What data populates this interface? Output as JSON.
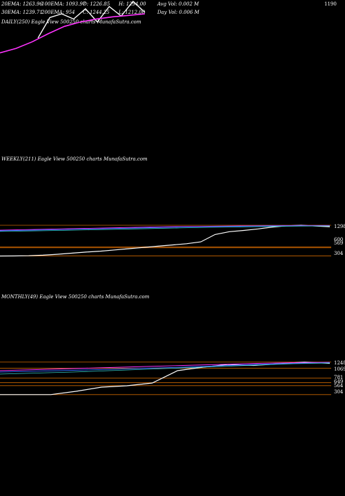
{
  "header": {
    "row1": [
      "20EMA: 1263.96",
      "100EMA: 1093.97",
      "O: 1226.85",
      "H: 1294.00",
      "Avg Vol: 0.002  M"
    ],
    "row2": [
      "30EMA: 1239.71",
      "200EMA: 954",
      "C: 1244.25",
      "L: 1212.00",
      "Day Vol: 0.006  M"
    ]
  },
  "colors": {
    "background": "#000000",
    "price": "#ffffff",
    "ema_magenta": "#ff33ff",
    "ema_blue": "#3366ff",
    "level_orange": "#cc6600",
    "ema_grey": "#999999",
    "ema_cyan": "#33cccc"
  },
  "chart_data": [
    {
      "type": "line",
      "title": "DAILY(250) Eagle  View  500250  charts MunafaSutra.com",
      "axis_labels": [
        "1190"
      ],
      "series": [
        {
          "values": [
            900,
            1180,
            1230,
            1160,
            1300,
            1120,
            1330,
            1200,
            1400,
            1250
          ]
        },
        {
          "values": [
            700,
            760,
            850,
            960,
            1060,
            1120,
            1160,
            1190,
            1210,
            1230
          ]
        }
      ]
    },
    {
      "type": "line",
      "title": "WEEKLY(211) Eagle  View  500250  charts MunafaSutra.com",
      "axis_labels": [
        "1298",
        "600",
        "569",
        "304"
      ],
      "levels": [
        1298,
        600,
        569,
        304
      ],
      "series": [
        {
          "values": [
            304,
            306,
            312,
            330,
            360,
            395,
            430,
            460,
            500,
            540,
            580,
            620,
            660,
            700,
            760,
            1000,
            1090,
            1130,
            1180,
            1240,
            1280,
            1298,
            1270,
            1250
          ]
        },
        {
          "values": [
            1140,
            1160,
            1180,
            1200,
            1220,
            1240,
            1255,
            1265,
            1275,
            1285,
            1290,
            1290
          ]
        },
        {
          "values": [
            1120,
            1140,
            1160,
            1180,
            1200,
            1220,
            1240,
            1255,
            1265,
            1275,
            1280,
            1280
          ]
        },
        {
          "values": [
            1100,
            1115,
            1130,
            1150,
            1170,
            1190,
            1210,
            1230,
            1245,
            1260,
            1270,
            1275
          ]
        }
      ]
    },
    {
      "type": "line",
      "title": "MONTHLY(49) Eagle  View  500250  charts MunafaSutra.com",
      "axis_labels": [
        "1248",
        "1069",
        "781",
        "649",
        "564",
        "304"
      ],
      "levels": [
        1248,
        1069,
        781,
        649,
        564,
        304
      ],
      "series": [
        {
          "values": [
            304,
            304,
            304,
            400,
            520,
            560,
            640,
            1000,
            1100,
            1180,
            1150,
            1200,
            1248,
            1210
          ]
        },
        {
          "values": [
            1000,
            1030,
            1060,
            1090,
            1120,
            1150,
            1180,
            1210,
            1230,
            1240
          ]
        },
        {
          "values": [
            960,
            985,
            1010,
            1040,
            1070,
            1100,
            1140,
            1180,
            1210,
            1230
          ]
        },
        {
          "values": [
            900,
            930,
            960,
            1000,
            1040,
            1080,
            1120,
            1160,
            1200,
            1220
          ]
        }
      ]
    }
  ]
}
